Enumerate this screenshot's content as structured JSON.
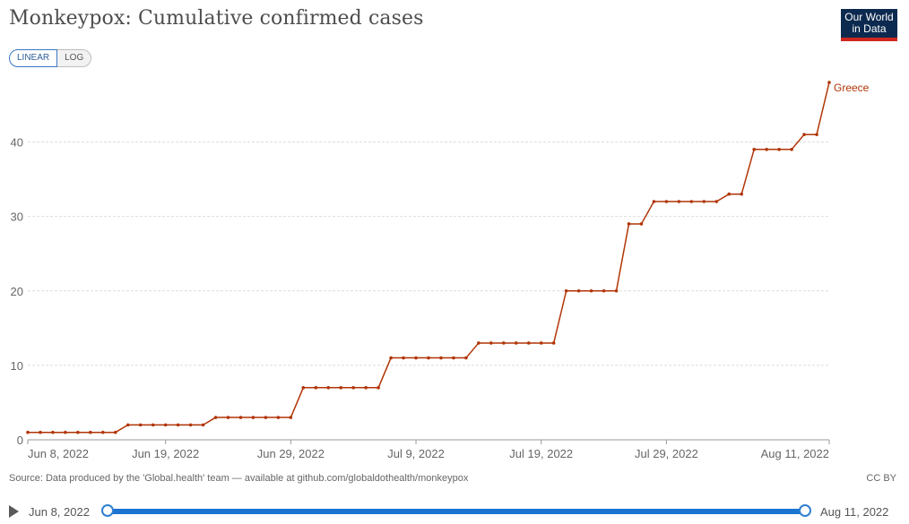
{
  "title": "Monkeypox: Cumulative confirmed cases",
  "logo": {
    "line1": "Our World",
    "line2": "in Data"
  },
  "scale_toggle": {
    "linear": "LINEAR",
    "log": "LOG",
    "selected": "LINEAR"
  },
  "source": "Source: Data produced by the 'Global.health' team — available at github.com/globaldothealth/monkeypox",
  "license": "CC BY",
  "timeline": {
    "start": "Jun 8, 2022",
    "end": "Aug 11, 2022"
  },
  "colors": {
    "series": "#b13507",
    "grid": "#dddddd",
    "axis": "#666666"
  },
  "chart_data": {
    "type": "line",
    "title": "Monkeypox: Cumulative confirmed cases",
    "xlabel": "",
    "ylabel": "",
    "ylim": [
      0,
      48
    ],
    "yticks": [
      0,
      10,
      20,
      30,
      40
    ],
    "xticks": [
      {
        "date": "2022-06-08",
        "label": "Jun 8, 2022"
      },
      {
        "date": "2022-06-19",
        "label": "Jun 19, 2022"
      },
      {
        "date": "2022-06-29",
        "label": "Jun 29, 2022"
      },
      {
        "date": "2022-07-09",
        "label": "Jul 9, 2022"
      },
      {
        "date": "2022-07-19",
        "label": "Jul 19, 2022"
      },
      {
        "date": "2022-07-29",
        "label": "Jul 29, 2022"
      },
      {
        "date": "2022-08-11",
        "label": "Aug 11, 2022"
      }
    ],
    "x_start": "2022-06-08",
    "x_end": "2022-08-11",
    "grid": true,
    "series": [
      {
        "name": "Greece",
        "points": [
          [
            "2022-06-08",
            1
          ],
          [
            "2022-06-09",
            1
          ],
          [
            "2022-06-10",
            1
          ],
          [
            "2022-06-11",
            1
          ],
          [
            "2022-06-12",
            1
          ],
          [
            "2022-06-13",
            1
          ],
          [
            "2022-06-14",
            1
          ],
          [
            "2022-06-15",
            1
          ],
          [
            "2022-06-16",
            2
          ],
          [
            "2022-06-17",
            2
          ],
          [
            "2022-06-18",
            2
          ],
          [
            "2022-06-19",
            2
          ],
          [
            "2022-06-20",
            2
          ],
          [
            "2022-06-21",
            2
          ],
          [
            "2022-06-22",
            2
          ],
          [
            "2022-06-23",
            3
          ],
          [
            "2022-06-24",
            3
          ],
          [
            "2022-06-25",
            3
          ],
          [
            "2022-06-26",
            3
          ],
          [
            "2022-06-27",
            3
          ],
          [
            "2022-06-28",
            3
          ],
          [
            "2022-06-29",
            3
          ],
          [
            "2022-06-30",
            7
          ],
          [
            "2022-07-01",
            7
          ],
          [
            "2022-07-02",
            7
          ],
          [
            "2022-07-03",
            7
          ],
          [
            "2022-07-04",
            7
          ],
          [
            "2022-07-05",
            7
          ],
          [
            "2022-07-06",
            7
          ],
          [
            "2022-07-07",
            11
          ],
          [
            "2022-07-08",
            11
          ],
          [
            "2022-07-09",
            11
          ],
          [
            "2022-07-10",
            11
          ],
          [
            "2022-07-11",
            11
          ],
          [
            "2022-07-12",
            11
          ],
          [
            "2022-07-13",
            11
          ],
          [
            "2022-07-14",
            13
          ],
          [
            "2022-07-15",
            13
          ],
          [
            "2022-07-16",
            13
          ],
          [
            "2022-07-17",
            13
          ],
          [
            "2022-07-18",
            13
          ],
          [
            "2022-07-19",
            13
          ],
          [
            "2022-07-20",
            13
          ],
          [
            "2022-07-21",
            20
          ],
          [
            "2022-07-22",
            20
          ],
          [
            "2022-07-23",
            20
          ],
          [
            "2022-07-24",
            20
          ],
          [
            "2022-07-25",
            20
          ],
          [
            "2022-07-26",
            29
          ],
          [
            "2022-07-27",
            29
          ],
          [
            "2022-07-28",
            32
          ],
          [
            "2022-07-29",
            32
          ],
          [
            "2022-07-30",
            32
          ],
          [
            "2022-07-31",
            32
          ],
          [
            "2022-08-01",
            32
          ],
          [
            "2022-08-02",
            32
          ],
          [
            "2022-08-03",
            33
          ],
          [
            "2022-08-04",
            33
          ],
          [
            "2022-08-05",
            39
          ],
          [
            "2022-08-06",
            39
          ],
          [
            "2022-08-07",
            39
          ],
          [
            "2022-08-08",
            39
          ],
          [
            "2022-08-09",
            41
          ],
          [
            "2022-08-10",
            41
          ],
          [
            "2022-08-11",
            48
          ]
        ]
      }
    ]
  }
}
